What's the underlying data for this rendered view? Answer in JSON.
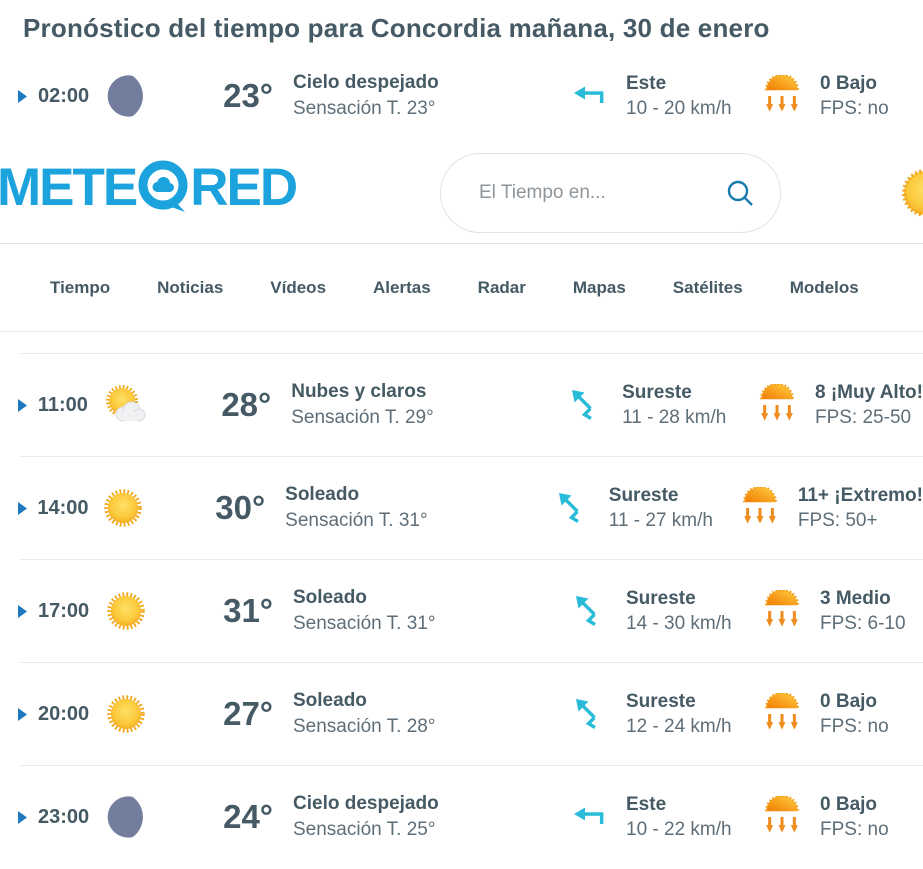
{
  "page": {
    "title": "Pronóstico del tiempo para Concordia mañana, 30 de enero"
  },
  "header": {
    "logo": {
      "text_left": "METE",
      "text_right": "RED",
      "icon": "speech-bubble-cloud"
    },
    "search": {
      "placeholder": "El Tiempo en...",
      "icon": "magnifier"
    },
    "current_weather_icon": "sun"
  },
  "nav": {
    "items": [
      {
        "label": "Tiempo"
      },
      {
        "label": "Noticias"
      },
      {
        "label": "Vídeos"
      },
      {
        "label": "Alertas"
      },
      {
        "label": "Radar"
      },
      {
        "label": "Mapas"
      },
      {
        "label": "Satélites"
      },
      {
        "label": "Modelos"
      }
    ]
  },
  "forecast": {
    "rows": [
      {
        "time": "02:00",
        "weather_icon": "moon",
        "temp": "23°",
        "condition": "Cielo despejado",
        "feels_like": "Sensación T. 23°",
        "wind_icon": "arrow-left",
        "wind_direction": "Este",
        "wind_speed": "10 - 20 km/h",
        "uv_icon": "uv-sun-arrows",
        "uv_index": "0 Bajo",
        "uv_fps": "FPS: no"
      },
      {
        "time": "11:00",
        "weather_icon": "sun-cloud",
        "temp": "28°",
        "condition": "Nubes y claros",
        "feels_like": "Sensación T. 29°",
        "wind_icon": "arrow-up-left",
        "wind_direction": "Sureste",
        "wind_speed": "11 - 28 km/h",
        "uv_icon": "uv-sun-arrows",
        "uv_index": "8 ¡Muy Alto!",
        "uv_fps": "FPS: 25-50"
      },
      {
        "time": "14:00",
        "weather_icon": "sun",
        "temp": "30°",
        "condition": "Soleado",
        "feels_like": "Sensación T. 31°",
        "wind_icon": "arrow-up-left",
        "wind_direction": "Sureste",
        "wind_speed": "11 - 27 km/h",
        "uv_icon": "uv-sun-arrows",
        "uv_index": "11+ ¡Extremo!",
        "uv_fps": "FPS: 50+"
      },
      {
        "time": "17:00",
        "weather_icon": "sun",
        "temp": "31°",
        "condition": "Soleado",
        "feels_like": "Sensación T. 31°",
        "wind_icon": "arrow-up-left",
        "wind_direction": "Sureste",
        "wind_speed": "14 - 30 km/h",
        "uv_icon": "uv-sun-arrows",
        "uv_index": "3 Medio",
        "uv_fps": "FPS: 6-10"
      },
      {
        "time": "20:00",
        "weather_icon": "sun",
        "temp": "27°",
        "condition": "Soleado",
        "feels_like": "Sensación T. 28°",
        "wind_icon": "arrow-up-left",
        "wind_direction": "Sureste",
        "wind_speed": "12 - 24 km/h",
        "uv_icon": "uv-sun-arrows",
        "uv_index": "0 Bajo",
        "uv_fps": "FPS: no"
      },
      {
        "time": "23:00",
        "weather_icon": "moon",
        "temp": "24°",
        "condition": "Cielo despejado",
        "feels_like": "Sensación T. 25°",
        "wind_icon": "arrow-left",
        "wind_direction": "Este",
        "wind_speed": "10 - 22 km/h",
        "uv_icon": "uv-sun-arrows",
        "uv_index": "0 Bajo",
        "uv_fps": "FPS: no"
      }
    ]
  },
  "colors": {
    "brand_blue": "#1CA3DD",
    "dark_text": "#455A64",
    "secondary_text": "#5E6E79",
    "cyan_wind": "#29BCD8",
    "orange_uv": "#EF8C1F",
    "sun_yellow": "#FBC93B",
    "moon_slate": "#737E9F",
    "expander_blue": "#1D79C0",
    "divider": "#ECECEC"
  }
}
